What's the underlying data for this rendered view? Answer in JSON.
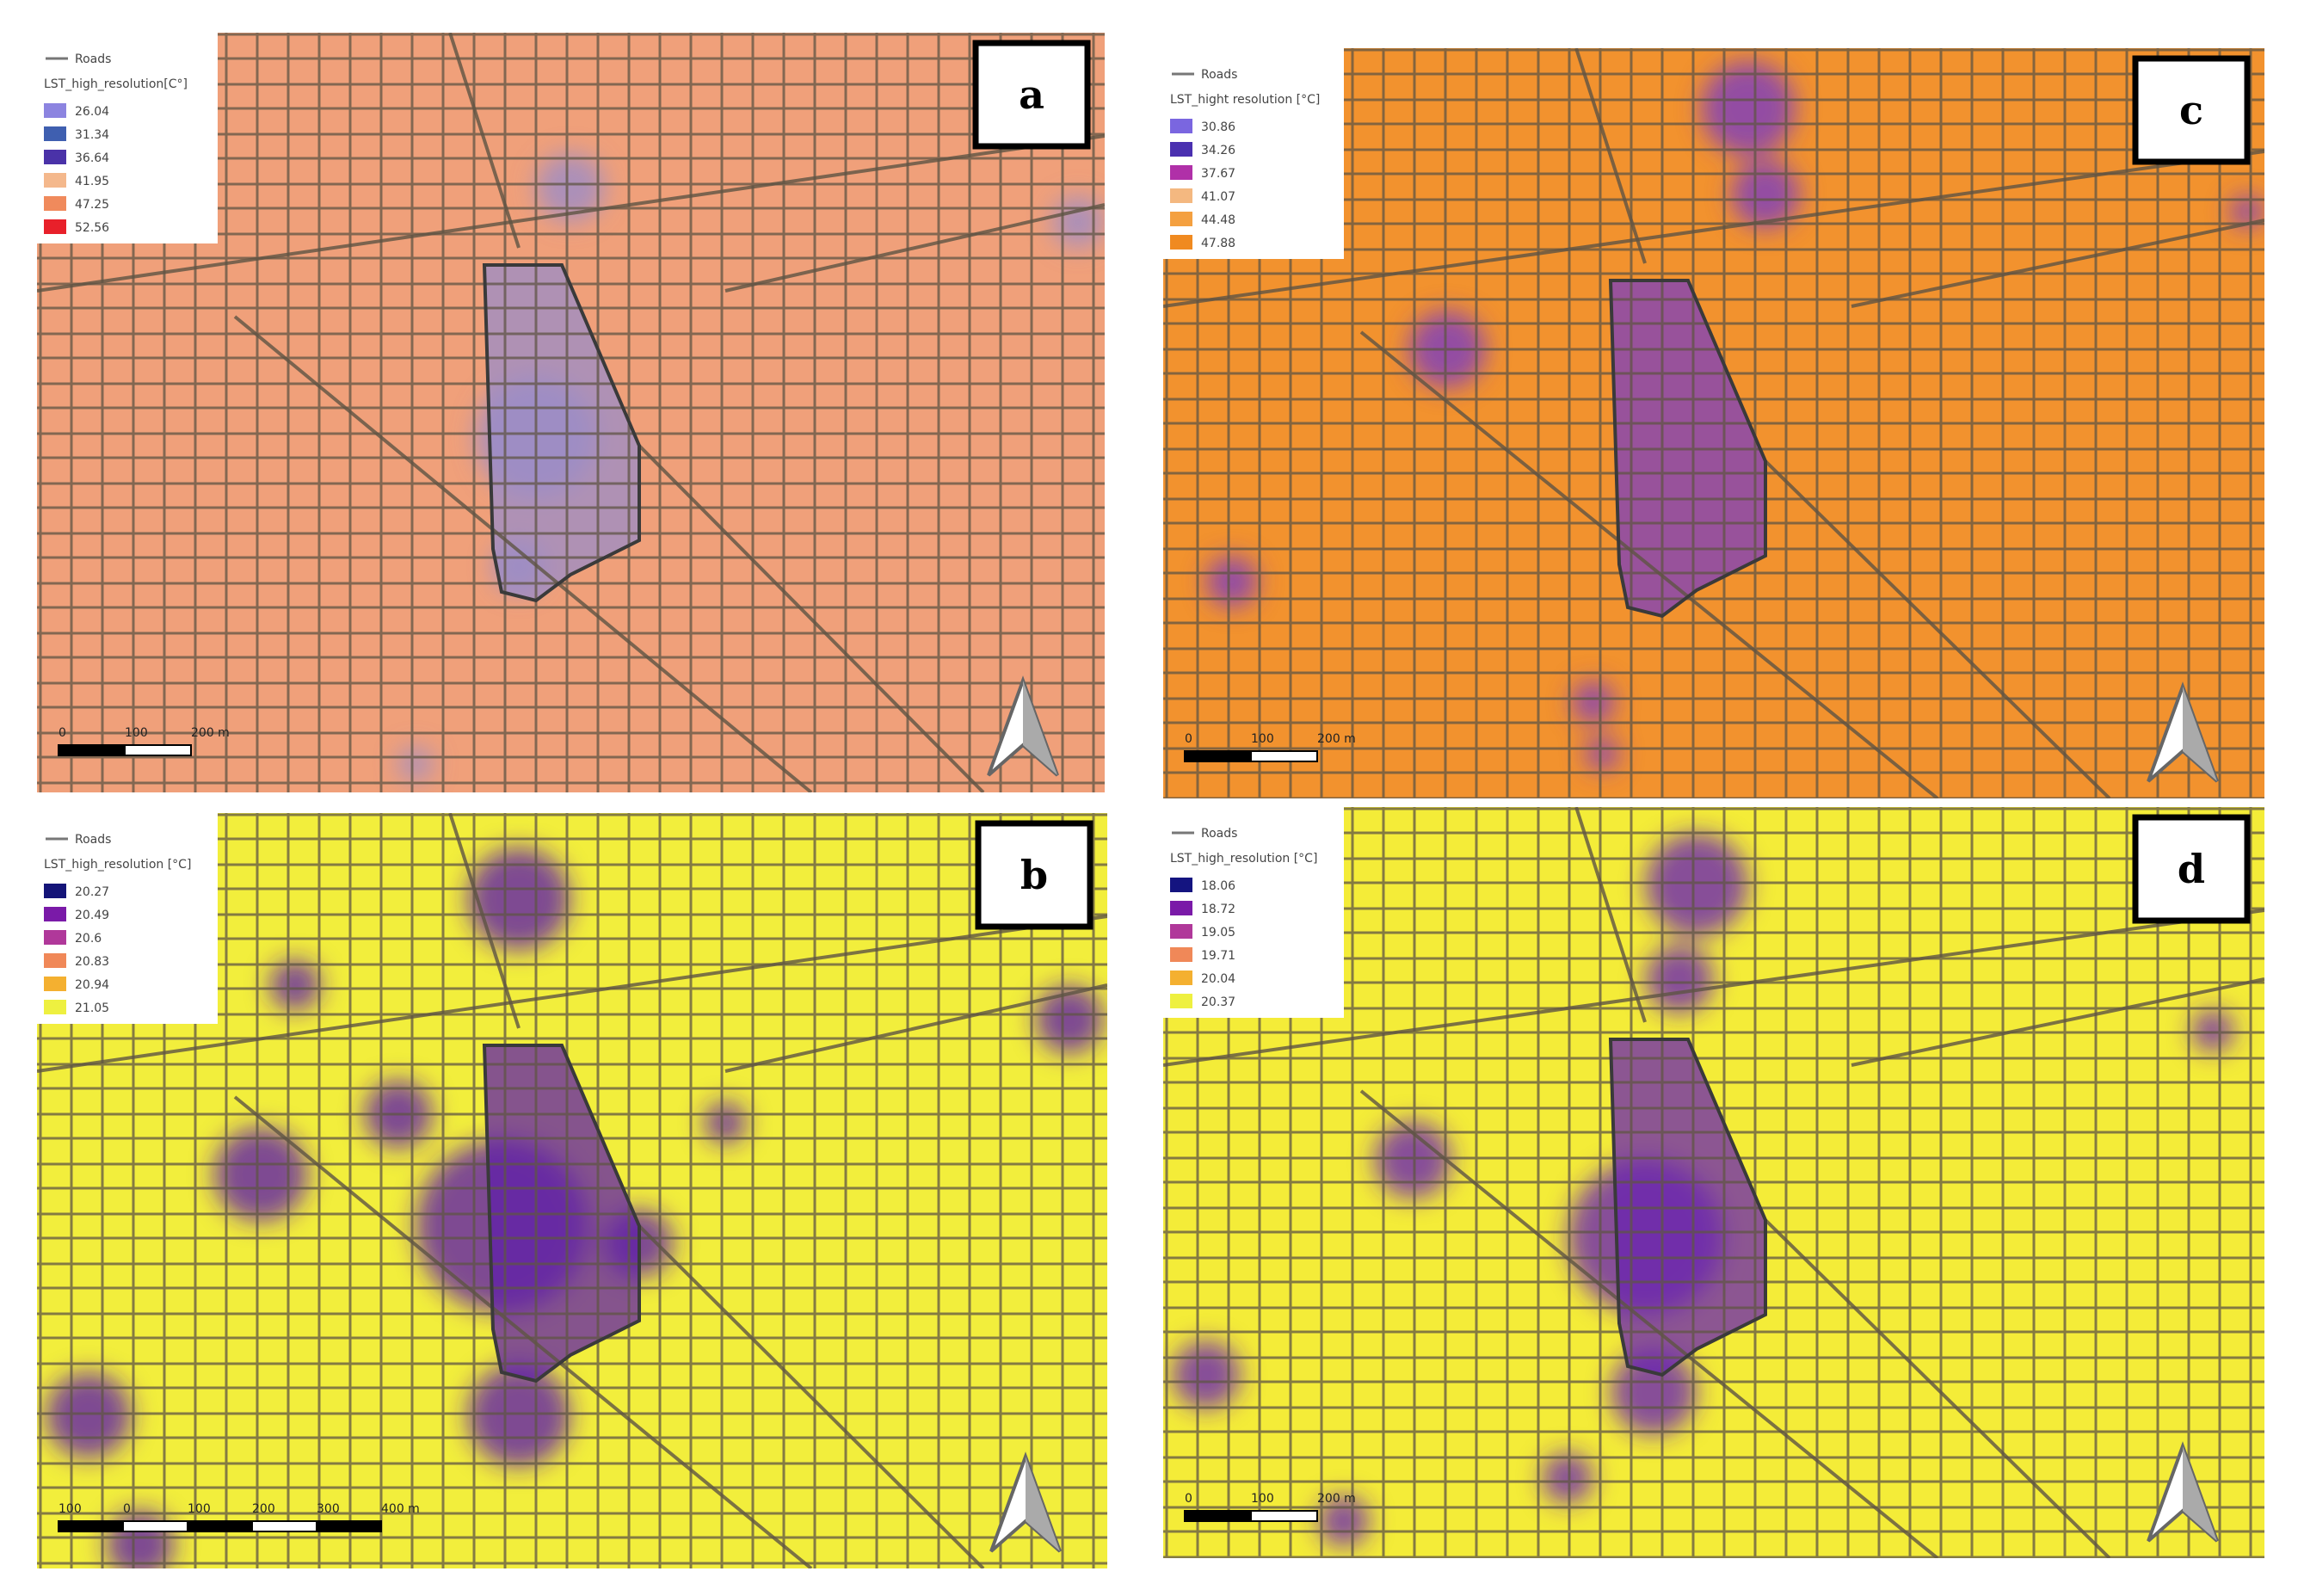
{
  "panels": [
    {
      "letter": "a",
      "base": "#f0a07a",
      "blob": "#9a8cc8",
      "legend": {
        "roads": "Roads",
        "title": "LST_high_resolution[C°]",
        "items": [
          {
            "label": "26.04",
            "color": "#8c84e0"
          },
          {
            "label": "31.34",
            "color": "#3f5fb0"
          },
          {
            "label": "36.64",
            "color": "#4a32a8"
          },
          {
            "label": "41.95",
            "color": "#f4b88c"
          },
          {
            "label": "47.25",
            "color": "#f08a5c"
          },
          {
            "label": "52.56",
            "color": "#e8202a"
          }
        ]
      },
      "scale": [
        "0",
        "100",
        "200 m"
      ]
    },
    {
      "letter": "c",
      "base": "#f2922e",
      "blob": "#7a3cc0",
      "legend": {
        "roads": "Roads",
        "title": "LST_hight resolution [°C]",
        "items": [
          {
            "label": "30.86",
            "color": "#7a66e0"
          },
          {
            "label": "34.26",
            "color": "#4a30b0"
          },
          {
            "label": "37.67",
            "color": "#b030a8"
          },
          {
            "label": "41.07",
            "color": "#f4b880"
          },
          {
            "label": "44.48",
            "color": "#f4a040"
          },
          {
            "label": "47.88",
            "color": "#f08a20"
          }
        ]
      },
      "scale": [
        "0",
        "100",
        "200 m"
      ]
    },
    {
      "letter": "b",
      "base": "#f2ee3c",
      "blob": "#6020a8",
      "legend": {
        "roads": "Roads",
        "title": "LST_high_resolution [°C]",
        "items": [
          {
            "label": "20.27",
            "color": "#141478"
          },
          {
            "label": "20.49",
            "color": "#7a1aa8"
          },
          {
            "label": "20.6",
            "color": "#b0389a"
          },
          {
            "label": "20.83",
            "color": "#f08858"
          },
          {
            "label": "20.94",
            "color": "#f4b030"
          },
          {
            "label": "21.05",
            "color": "#eef040"
          }
        ]
      },
      "scale": [
        "100",
        "0",
        "100",
        "200",
        "300",
        "400 m"
      ]
    },
    {
      "letter": "d",
      "base": "#f4ec38",
      "blob": "#6a24b0",
      "legend": {
        "roads": "Roads",
        "title": "LST_high_resolution [°C]",
        "items": [
          {
            "label": "18.06",
            "color": "#141480"
          },
          {
            "label": "18.72",
            "color": "#7a1aa8"
          },
          {
            "label": "19.05",
            "color": "#b0389a"
          },
          {
            "label": "19.71",
            "color": "#f08858"
          },
          {
            "label": "20.04",
            "color": "#f4b030"
          },
          {
            "label": "20.37",
            "color": "#eef040"
          }
        ]
      },
      "scale": [
        "0",
        "100",
        "200 m"
      ]
    }
  ]
}
